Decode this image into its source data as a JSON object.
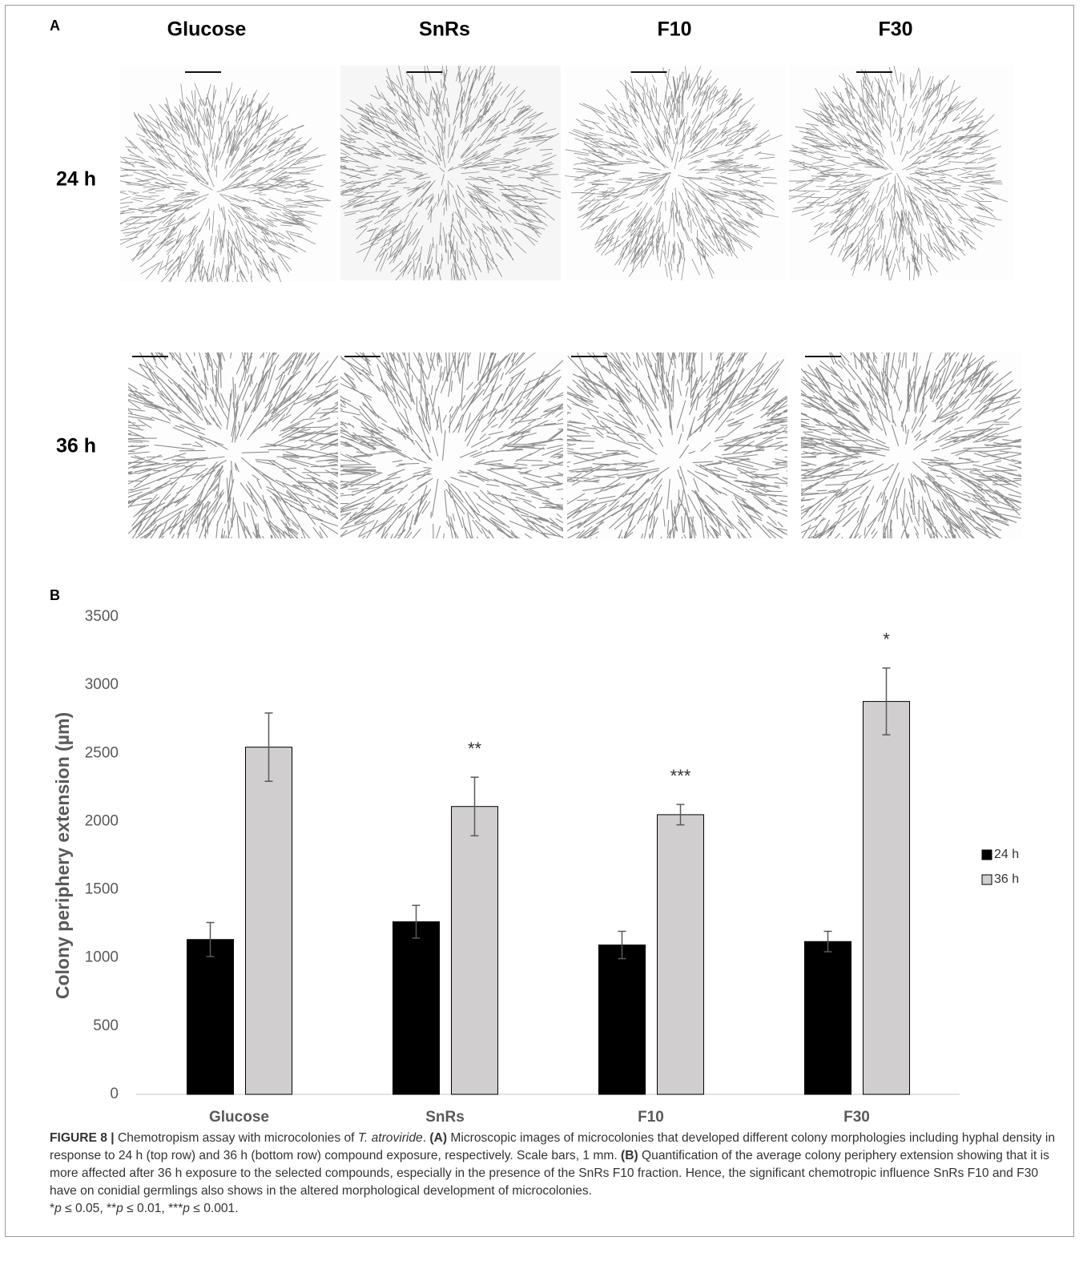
{
  "panel_a": {
    "label": "A",
    "columns": [
      "Glucose",
      "SnRs",
      "F10",
      "F30"
    ],
    "rows": [
      "24 h",
      "36 h"
    ]
  },
  "chart_data": {
    "type": "bar",
    "panel_label": "B",
    "y_label": "Colony periphery extension (µm)",
    "categories": [
      "Glucose",
      "SnRs",
      "F10",
      "F30"
    ],
    "series": [
      {
        "name": "24 h",
        "color": "#000000",
        "values": [
          1135,
          1265,
          1095,
          1120
        ],
        "errors": [
          125,
          120,
          100,
          75
        ]
      },
      {
        "name": "36 h",
        "color": "#d0cecf",
        "values": [
          2545,
          2110,
          2050,
          2880
        ],
        "errors": [
          250,
          215,
          75,
          245
        ],
        "annotations": [
          null,
          "**",
          "***",
          "*"
        ]
      }
    ],
    "ylim": [
      0,
      3500
    ],
    "yticks": [
      0,
      500,
      1000,
      1500,
      2000,
      2500,
      3000,
      3500
    ],
    "grid": false,
    "legend": "right"
  },
  "caption": {
    "runs": [
      {
        "text": "FIGURE 8 |",
        "style": "bold"
      },
      {
        "text": " Chemotropism assay with microcolonies of ",
        "style": "normal"
      },
      {
        "text": "T. atroviride",
        "style": "italic"
      },
      {
        "text": ". ",
        "style": "normal"
      },
      {
        "text": "(A)",
        "style": "bold"
      },
      {
        "text": " Microscopic images of microcolonies that developed different colony morphologies including hyphal density in response to 24 h (top row) and 36 h (bottom row) compound exposure, respectively. Scale bars, 1 mm. ",
        "style": "normal"
      },
      {
        "text": "(B)",
        "style": "bold"
      },
      {
        "text": " Quantification of the average colony periphery extension showing that it is more affected after 36 h exposure to the selected compounds, especially in the presence of the SnRs F10 fraction. Hence, the significant chemotropic influence SnRs F10 and F30 have on conidial germlings also shows in the altered morphological development of microcolonies.",
        "style": "normal"
      }
    ],
    "footnote": [
      {
        "text": "*",
        "style": "normal"
      },
      {
        "text": "p",
        "style": "italic"
      },
      {
        "text": " ≤ 0.05, **",
        "style": "normal"
      },
      {
        "text": "p",
        "style": "italic"
      },
      {
        "text": " ≤ 0.01, ***",
        "style": "normal"
      },
      {
        "text": "p",
        "style": "italic"
      },
      {
        "text": " ≤ 0.001.",
        "style": "normal"
      }
    ]
  }
}
